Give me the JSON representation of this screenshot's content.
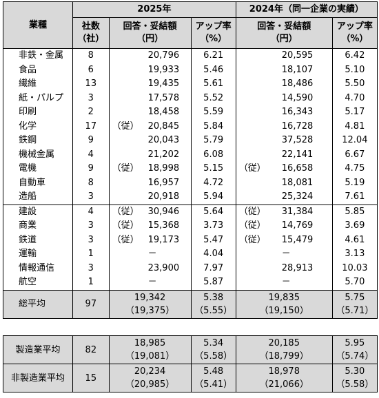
{
  "header": {
    "industry_label": "業種",
    "year_2025": "2025年",
    "year_2024": "2024年（同一企業の実績）",
    "count_label": [
      "社数",
      "（社）"
    ],
    "amount_label": [
      "回答・妥結額",
      "（円）"
    ],
    "rate_label": [
      "アップ率",
      "（%）"
    ]
  },
  "group1": [
    {
      "industry": "非鉄・金属",
      "count": "8",
      "amt_prefix": "",
      "amt": "20,796",
      "rate": "6.21",
      "amt24_prefix": "",
      "amt24": "20,595",
      "rate24": "6.42"
    },
    {
      "industry": "食品",
      "count": "6",
      "amt_prefix": "",
      "amt": "19,933",
      "rate": "5.46",
      "amt24_prefix": "",
      "amt24": "18,107",
      "rate24": "5.10"
    },
    {
      "industry": "繊維",
      "count": "13",
      "amt_prefix": "",
      "amt": "19,435",
      "rate": "5.61",
      "amt24_prefix": "",
      "amt24": "18,486",
      "rate24": "5.50"
    },
    {
      "industry": "紙・パルプ",
      "count": "3",
      "amt_prefix": "",
      "amt": "17,578",
      "rate": "5.52",
      "amt24_prefix": "",
      "amt24": "14,590",
      "rate24": "4.70"
    },
    {
      "industry": "印刷",
      "count": "2",
      "amt_prefix": "",
      "amt": "18,458",
      "rate": "5.59",
      "amt24_prefix": "",
      "amt24": "16,343",
      "rate24": "5.17"
    },
    {
      "industry": "化学",
      "count": "17",
      "amt_prefix": "（従）",
      "amt": "20,845",
      "rate": "5.84",
      "amt24_prefix": "",
      "amt24": "16,728",
      "rate24": "4.81"
    },
    {
      "industry": "鉄鋼",
      "count": "9",
      "amt_prefix": "",
      "amt": "20,043",
      "rate": "5.79",
      "amt24_prefix": "",
      "amt24": "37,528",
      "rate24": "12.04"
    },
    {
      "industry": "機械金属",
      "count": "4",
      "amt_prefix": "",
      "amt": "21,202",
      "rate": "6.08",
      "amt24_prefix": "",
      "amt24": "22,141",
      "rate24": "6.67"
    },
    {
      "industry": "電機",
      "count": "9",
      "amt_prefix": "（従）",
      "amt": "18,998",
      "rate": "5.15",
      "amt24_prefix": "（従）",
      "amt24": "16,658",
      "rate24": "4.75"
    },
    {
      "industry": "自動車",
      "count": "8",
      "amt_prefix": "",
      "amt": "16,957",
      "rate": "4.72",
      "amt24_prefix": "",
      "amt24": "18,081",
      "rate24": "5.19"
    },
    {
      "industry": "造船",
      "count": "3",
      "amt_prefix": "",
      "amt": "20,918",
      "rate": "5.94",
      "amt24_prefix": "",
      "amt24": "25,324",
      "rate24": "7.61"
    }
  ],
  "group2": [
    {
      "industry": "建設",
      "count": "4",
      "amt_prefix": "（従）",
      "amt": "30,946",
      "rate": "5.64",
      "amt24_prefix": "（従）",
      "amt24": "31,384",
      "rate24": "5.85"
    },
    {
      "industry": "商業",
      "count": "3",
      "amt_prefix": "（従）",
      "amt": "15,368",
      "rate": "3.73",
      "amt24_prefix": "（従）",
      "amt24": "14,769",
      "rate24": "3.69"
    },
    {
      "industry": "鉄道",
      "count": "3",
      "amt_prefix": "（従）",
      "amt": "19,173",
      "rate": "5.47",
      "amt24_prefix": "（従）",
      "amt24": "15,479",
      "rate24": "4.61"
    },
    {
      "industry": "運輸",
      "count": "1",
      "amt_prefix": "",
      "amt": "－",
      "rate": "4.04",
      "amt24_prefix": "",
      "amt24": "－",
      "rate24": "3.13"
    },
    {
      "industry": "情報通信",
      "count": "3",
      "amt_prefix": "",
      "amt": "23,900",
      "rate": "7.97",
      "amt24_prefix": "",
      "amt24": "28,913",
      "rate24": "10.03"
    },
    {
      "industry": "航空",
      "count": "1",
      "amt_prefix": "",
      "amt": "－",
      "rate": "5.87",
      "amt24_prefix": "",
      "amt24": "－",
      "rate24": "5.70"
    }
  ],
  "total": {
    "label": "総平均",
    "count": "97",
    "amt": "19,342",
    "amt_sub": "（19,375）",
    "rate": "5.38",
    "rate_sub": "（5.55）",
    "amt24": "19,835",
    "amt24_sub": "（19,150）",
    "rate24": "5.75",
    "rate24_sub": "（5.71）"
  },
  "mfg": {
    "label": "製造業平均",
    "count": "82",
    "amt": "18,985",
    "amt_sub": "（19,081）",
    "rate": "5.34",
    "rate_sub": "（5.58）",
    "amt24": "20,185",
    "amt24_sub": "（18,799）",
    "rate24": "5.95",
    "rate24_sub": "（5.74）"
  },
  "nonmfg": {
    "label": "非製造業平均",
    "count": "15",
    "amt": "20,234",
    "amt_sub": "（20,985）",
    "rate": "5.48",
    "rate_sub": "（5.41）",
    "amt24": "18,978",
    "amt24_sub": "（21,066）",
    "rate24": "5.30",
    "rate24_sub": "（5.58）"
  }
}
